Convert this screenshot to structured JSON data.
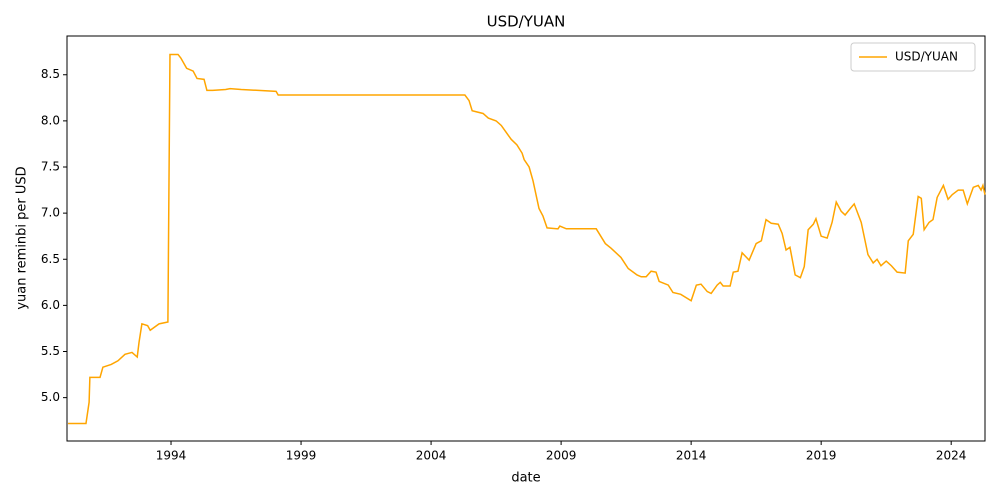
{
  "chart_data": {
    "type": "line",
    "title": "USD/YUAN",
    "x_label": "date",
    "y_label": "yuan reminbi per USD",
    "x": [
      1990.04,
      1990.73,
      1990.85,
      1990.88,
      1991.1,
      1991.27,
      1991.38,
      1991.7,
      1991.96,
      1992.23,
      1992.5,
      1992.7,
      1992.77,
      1992.88,
      1993.1,
      1993.2,
      1993.54,
      1993.88,
      1993.96,
      1994.27,
      1994.38,
      1994.6,
      1994.85,
      1995.0,
      1995.27,
      1995.38,
      1995.6,
      1996.1,
      1996.27,
      1996.7,
      1998.04,
      1998.12,
      2000.0,
      2002.0,
      2005.3,
      2005.46,
      2005.58,
      2006.0,
      2006.2,
      2006.5,
      2006.7,
      2007.08,
      2007.3,
      2007.5,
      2007.58,
      2007.77,
      2007.92,
      2008.15,
      2008.3,
      2008.46,
      2008.88,
      2008.95,
      2009.2,
      2010.35,
      2010.46,
      2010.7,
      2010.92,
      2011.3,
      2011.58,
      2011.92,
      2012.08,
      2012.27,
      2012.46,
      2012.65,
      2012.77,
      2013.12,
      2013.3,
      2013.6,
      2014.0,
      2014.2,
      2014.38,
      2014.62,
      2014.77,
      2015.0,
      2015.12,
      2015.23,
      2015.5,
      2015.62,
      2015.8,
      2015.96,
      2016.23,
      2016.5,
      2016.7,
      2016.88,
      2017.08,
      2017.35,
      2017.5,
      2017.65,
      2017.8,
      2018.0,
      2018.2,
      2018.35,
      2018.5,
      2018.7,
      2018.8,
      2019.0,
      2019.23,
      2019.42,
      2019.58,
      2019.77,
      2019.92,
      2020.12,
      2020.27,
      2020.54,
      2020.8,
      2021.0,
      2021.15,
      2021.3,
      2021.5,
      2021.7,
      2021.92,
      2022.23,
      2022.35,
      2022.54,
      2022.73,
      2022.85,
      2022.96,
      2023.15,
      2023.3,
      2023.46,
      2023.7,
      2023.88,
      2024.04,
      2024.27,
      2024.46,
      2024.62,
      2024.85,
      2025.04,
      2025.15,
      2025.22,
      2025.3
    ],
    "series": [
      {
        "name": "USD/YUAN",
        "color": "#ffa500",
        "values": [
          4.72,
          4.72,
          4.95,
          5.22,
          5.22,
          5.22,
          5.33,
          5.36,
          5.4,
          5.47,
          5.49,
          5.44,
          5.6,
          5.8,
          5.78,
          5.73,
          5.8,
          5.82,
          8.72,
          8.72,
          8.68,
          8.57,
          8.54,
          8.46,
          8.45,
          8.33,
          8.33,
          8.34,
          8.35,
          8.34,
          8.32,
          8.28,
          8.28,
          8.28,
          8.28,
          8.22,
          8.11,
          8.08,
          8.03,
          8.0,
          7.95,
          7.8,
          7.74,
          7.65,
          7.58,
          7.5,
          7.35,
          7.05,
          6.97,
          6.84,
          6.83,
          6.86,
          6.83,
          6.83,
          6.78,
          6.67,
          6.62,
          6.52,
          6.4,
          6.33,
          6.31,
          6.31,
          6.37,
          6.36,
          6.26,
          6.22,
          6.14,
          6.12,
          6.05,
          6.22,
          6.23,
          6.15,
          6.13,
          6.22,
          6.25,
          6.21,
          6.21,
          6.36,
          6.37,
          6.57,
          6.49,
          6.67,
          6.7,
          6.93,
          6.89,
          6.88,
          6.78,
          6.6,
          6.63,
          6.33,
          6.3,
          6.42,
          6.82,
          6.88,
          6.94,
          6.75,
          6.73,
          6.9,
          7.12,
          7.02,
          6.98,
          7.05,
          7.1,
          6.9,
          6.55,
          6.46,
          6.5,
          6.43,
          6.48,
          6.43,
          6.36,
          6.35,
          6.7,
          6.77,
          7.18,
          7.16,
          6.82,
          6.9,
          6.93,
          7.17,
          7.3,
          7.15,
          7.2,
          7.25,
          7.25,
          7.1,
          7.28,
          7.3,
          7.25,
          7.3,
          7.2
        ]
      }
    ],
    "xlim": [
      1990.0,
      2025.3
    ],
    "xticks": [
      1994,
      1999,
      2004,
      2009,
      2014,
      2019,
      2024
    ],
    "ylim": [
      4.53,
      8.92
    ],
    "yticks": [
      {
        "value": 5,
        "label": "5.0"
      },
      5.5,
      {
        "value": 6,
        "label": "6.0"
      },
      6.5,
      {
        "value": 7,
        "label": "7.0"
      },
      7.5,
      {
        "value": 8,
        "label": "8.0"
      },
      8.5
    ],
    "legend": "upper right"
  }
}
